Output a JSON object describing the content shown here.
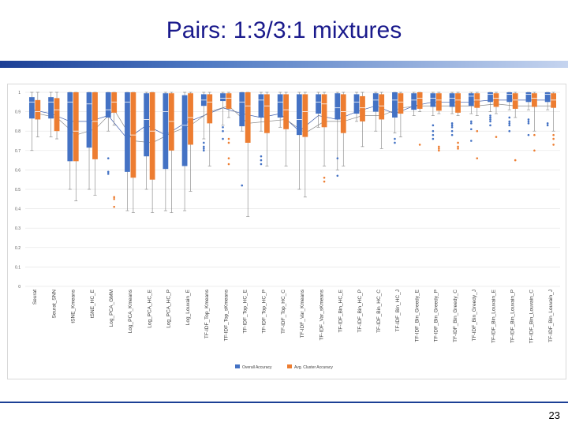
{
  "slide": {
    "title": "Pairs: 1:3/3:1 mixtures",
    "page_number": "23"
  },
  "colors": {
    "overall": "#4472c4",
    "cluster": "#ed7d31",
    "title": "#1a1a8c"
  },
  "chart_data": {
    "type": "box",
    "ylim": [
      0,
      1
    ],
    "yticks": [
      "0",
      "0.1",
      "0.2",
      "0.3",
      "0.4",
      "0.5",
      "0.6",
      "0.7",
      "0.8",
      "0.9",
      "1"
    ],
    "categories": [
      "Seurat",
      "Seurat_SNN",
      "tSNE_Kmeans",
      "tSNE_HC_E",
      "Log_PCA_GMM",
      "Log_PCA_Kmeans",
      "Log_PCA_HC_E",
      "Log_PCA_HC_P",
      "Log_Louvain_E",
      "TF-IDF_Top_Kmeans",
      "TF-IDF_Top_sKmeans",
      "TF-IDF_Top_HC_E",
      "TF-IDF_Top_HC_P",
      "TF-IDF_Top_HC_C",
      "TF-IDF_Var_Kmeans",
      "TF-IDF_Var_sKmeans",
      "TF-IDF_Bin_HC_E",
      "TF-IDF_Bin_HC_P",
      "TF-IDF_Bin_HC_C",
      "TF-IDF_Bin_HC_J",
      "TF-IDF_Bin_Greedy_E",
      "TF-IDF_Bin_Greedy_P",
      "TF-IDF_Bin_Greedy_C",
      "TF-IDF_Bin_Greedy_J",
      "TF-IDF_Bin_Louvain_E",
      "TF-IDF_Bin_Louvain_P",
      "TF-IDF_Bin_Louvain_C",
      "TF-IDF_Bin_Louvain_J"
    ],
    "legend": {
      "position": "bottom",
      "labels": [
        "Overall Accuracy",
        "Avg. Cluster Accuracy"
      ]
    },
    "series": [
      {
        "name": "Overall Accuracy",
        "color": "#4472c4",
        "boxes": [
          {
            "min": 0.7,
            "q1": 0.865,
            "median": 0.95,
            "q3": 0.975,
            "max": 1.0,
            "mean": 0.91,
            "outliers": []
          },
          {
            "min": 0.77,
            "q1": 0.865,
            "median": 0.95,
            "q3": 0.975,
            "max": 1.0,
            "mean": 0.89,
            "outliers": []
          },
          {
            "min": 0.5,
            "q1": 0.645,
            "median": 0.95,
            "q3": 1.0,
            "max": 1.0,
            "mean": 0.85,
            "outliers": []
          },
          {
            "min": 0.5,
            "q1": 0.715,
            "median": 0.94,
            "q3": 1.0,
            "max": 1.0,
            "mean": 0.85,
            "outliers": []
          },
          {
            "min": 0.8,
            "q1": 0.87,
            "median": 0.91,
            "q3": 1.0,
            "max": 1.0,
            "mean": 0.88,
            "outliers": [
              0.58,
              0.59,
              0.66
            ]
          },
          {
            "min": 0.39,
            "q1": 0.59,
            "median": 0.95,
            "q3": 1.0,
            "max": 1.0,
            "mean": 0.76,
            "outliers": []
          },
          {
            "min": 0.5,
            "q1": 0.67,
            "median": 0.86,
            "q3": 0.995,
            "max": 1.0,
            "mean": 0.83,
            "outliers": []
          },
          {
            "min": 0.39,
            "q1": 0.605,
            "median": 0.9,
            "q3": 0.995,
            "max": 1.0,
            "mean": 0.78,
            "outliers": []
          },
          {
            "min": 0.39,
            "q1": 0.62,
            "median": 0.83,
            "q3": 0.985,
            "max": 1.0,
            "mean": 0.84,
            "outliers": []
          },
          {
            "min": 0.76,
            "q1": 0.93,
            "median": 0.96,
            "q3": 0.99,
            "max": 1.0,
            "mean": 0.88,
            "outliers": [
              0.7,
              0.71,
              0.72,
              0.74
            ]
          },
          {
            "min": 0.83,
            "q1": 0.955,
            "median": 0.97,
            "q3": 0.995,
            "max": 1.0,
            "mean": 0.92,
            "outliers": [
              0.76,
              0.8,
              0.82
            ]
          },
          {
            "min": 0.8,
            "q1": 0.825,
            "median": 0.95,
            "q3": 1.0,
            "max": 1.0,
            "mean": 0.89,
            "outliers": [
              0.52
            ]
          },
          {
            "min": 0.8,
            "q1": 0.87,
            "median": 0.96,
            "q3": 0.99,
            "max": 1.0,
            "mean": 0.87,
            "outliers": [
              0.63,
              0.65,
              0.67
            ]
          },
          {
            "min": 0.82,
            "q1": 0.87,
            "median": 0.95,
            "q3": 0.99,
            "max": 1.0,
            "mean": 0.89,
            "outliers": []
          },
          {
            "min": 0.5,
            "q1": 0.78,
            "median": 0.86,
            "q3": 0.99,
            "max": 1.0,
            "mean": 0.8,
            "outliers": []
          },
          {
            "min": 0.82,
            "q1": 0.89,
            "median": 0.95,
            "q3": 0.99,
            "max": 1.0,
            "mean": 0.88,
            "outliers": []
          },
          {
            "min": 0.6,
            "q1": 0.86,
            "median": 0.92,
            "q3": 0.995,
            "max": 1.0,
            "mean": 0.86,
            "outliers": [
              0.57,
              0.66
            ]
          },
          {
            "min": 0.85,
            "q1": 0.89,
            "median": 0.95,
            "q3": 0.99,
            "max": 1.0,
            "mean": 0.9,
            "outliers": []
          },
          {
            "min": 0.8,
            "q1": 0.9,
            "median": 0.96,
            "q3": 0.995,
            "max": 1.0,
            "mean": 0.93,
            "outliers": []
          },
          {
            "min": 0.79,
            "q1": 0.87,
            "median": 0.96,
            "q3": 1.0,
            "max": 1.0,
            "mean": 0.89,
            "outliers": [
              0.74,
              0.76
            ]
          },
          {
            "min": 0.88,
            "q1": 0.91,
            "median": 0.96,
            "q3": 0.995,
            "max": 1.0,
            "mean": 0.93,
            "outliers": []
          },
          {
            "min": 0.88,
            "q1": 0.925,
            "median": 0.97,
            "q3": 0.995,
            "max": 1.0,
            "mean": 0.95,
            "outliers": [
              0.76,
              0.78,
              0.8,
              0.83
            ]
          },
          {
            "min": 0.89,
            "q1": 0.925,
            "median": 0.97,
            "q3": 0.995,
            "max": 1.0,
            "mean": 0.95,
            "outliers": [
              0.78,
              0.8,
              0.82,
              0.83,
              0.84
            ]
          },
          {
            "min": 0.89,
            "q1": 0.93,
            "median": 0.98,
            "q3": 0.995,
            "max": 1.0,
            "mean": 0.95,
            "outliers": [
              0.75,
              0.81,
              0.84,
              0.85
            ]
          },
          {
            "min": 0.9,
            "q1": 0.95,
            "median": 0.99,
            "q3": 1.0,
            "max": 1.0,
            "mean": 0.96,
            "outliers": [
              0.83,
              0.85,
              0.86,
              0.87,
              0.88
            ]
          },
          {
            "min": 0.91,
            "q1": 0.95,
            "median": 0.99,
            "q3": 1.0,
            "max": 1.0,
            "mean": 0.96,
            "outliers": [
              0.8,
              0.83,
              0.84,
              0.85,
              0.87
            ]
          },
          {
            "min": 0.91,
            "q1": 0.95,
            "median": 0.99,
            "q3": 1.0,
            "max": 1.0,
            "mean": 0.96,
            "outliers": [
              0.78,
              0.84,
              0.85,
              0.86
            ]
          },
          {
            "min": 0.91,
            "q1": 0.95,
            "median": 0.99,
            "q3": 1.0,
            "max": 1.0,
            "mean": 0.96,
            "outliers": [
              0.83,
              0.84
            ]
          }
        ]
      },
      {
        "name": "Avg. Cluster Accuracy",
        "color": "#ed7d31",
        "boxes": [
          {
            "min": 0.77,
            "q1": 0.86,
            "median": 0.9,
            "q3": 0.96,
            "max": 1.0,
            "mean": 0.89,
            "outliers": []
          },
          {
            "min": 0.76,
            "q1": 0.8,
            "median": 0.91,
            "q3": 0.97,
            "max": 1.0,
            "mean": 0.87,
            "outliers": []
          },
          {
            "min": 0.44,
            "q1": 0.645,
            "median": 0.8,
            "q3": 1.0,
            "max": 1.0,
            "mean": 0.78,
            "outliers": []
          },
          {
            "min": 0.47,
            "q1": 0.655,
            "median": 0.85,
            "q3": 1.0,
            "max": 1.0,
            "mean": 0.81,
            "outliers": []
          },
          {
            "min": 0.83,
            "q1": 0.895,
            "median": 0.95,
            "q3": 1.0,
            "max": 1.0,
            "mean": 0.91,
            "outliers": [
              0.41,
              0.45,
              0.46
            ]
          },
          {
            "min": 0.38,
            "q1": 0.56,
            "median": 0.78,
            "q3": 1.0,
            "max": 1.0,
            "mean": 0.75,
            "outliers": []
          },
          {
            "min": 0.38,
            "q1": 0.55,
            "median": 0.8,
            "q3": 1.0,
            "max": 1.0,
            "mean": 0.74,
            "outliers": []
          },
          {
            "min": 0.38,
            "q1": 0.7,
            "median": 0.85,
            "q3": 0.995,
            "max": 1.0,
            "mean": 0.79,
            "outliers": []
          },
          {
            "min": 0.49,
            "q1": 0.73,
            "median": 0.87,
            "q3": 0.995,
            "max": 1.0,
            "mean": 0.83,
            "outliers": []
          },
          {
            "min": 0.62,
            "q1": 0.84,
            "median": 0.95,
            "q3": 0.99,
            "max": 1.0,
            "mean": 0.9,
            "outliers": []
          },
          {
            "min": 0.87,
            "q1": 0.915,
            "median": 0.97,
            "q3": 0.995,
            "max": 1.0,
            "mean": 0.93,
            "outliers": [
              0.63,
              0.66,
              0.74,
              0.76
            ]
          },
          {
            "min": 0.36,
            "q1": 0.74,
            "median": 0.93,
            "q3": 1.0,
            "max": 1.0,
            "mean": 0.84,
            "outliers": []
          },
          {
            "min": 0.62,
            "q1": 0.79,
            "median": 0.93,
            "q3": 0.99,
            "max": 1.0,
            "mean": 0.85,
            "outliers": []
          },
          {
            "min": 0.62,
            "q1": 0.81,
            "median": 0.91,
            "q3": 0.99,
            "max": 1.0,
            "mean": 0.86,
            "outliers": []
          },
          {
            "min": 0.46,
            "q1": 0.77,
            "median": 0.9,
            "q3": 0.99,
            "max": 1.0,
            "mean": 0.79,
            "outliers": []
          },
          {
            "min": 0.62,
            "q1": 0.82,
            "median": 0.94,
            "q3": 0.99,
            "max": 1.0,
            "mean": 0.85,
            "outliers": [
              0.54,
              0.56
            ]
          },
          {
            "min": 0.62,
            "q1": 0.79,
            "median": 0.9,
            "q3": 0.99,
            "max": 1.0,
            "mean": 0.85,
            "outliers": []
          },
          {
            "min": 0.72,
            "q1": 0.85,
            "median": 0.92,
            "q3": 0.98,
            "max": 1.0,
            "mean": 0.88,
            "outliers": []
          },
          {
            "min": 0.71,
            "q1": 0.86,
            "median": 0.93,
            "q3": 0.99,
            "max": 1.0,
            "mean": 0.88,
            "outliers": []
          },
          {
            "min": 0.77,
            "q1": 0.89,
            "median": 0.95,
            "q3": 0.995,
            "max": 1.0,
            "mean": 0.92,
            "outliers": []
          },
          {
            "min": 0.9,
            "q1": 0.915,
            "median": 0.97,
            "q3": 1.0,
            "max": 1.0,
            "mean": 0.93,
            "outliers": [
              0.73
            ]
          },
          {
            "min": 0.89,
            "q1": 0.905,
            "median": 0.96,
            "q3": 0.995,
            "max": 1.0,
            "mean": 0.93,
            "outliers": [
              0.7,
              0.71,
              0.72
            ]
          },
          {
            "min": 0.88,
            "q1": 0.895,
            "median": 0.96,
            "q3": 0.995,
            "max": 1.0,
            "mean": 0.93,
            "outliers": [
              0.71,
              0.72,
              0.74
            ]
          },
          {
            "min": 0.88,
            "q1": 0.92,
            "median": 0.96,
            "q3": 0.995,
            "max": 1.0,
            "mean": 0.93,
            "outliers": [
              0.66,
              0.8
            ]
          },
          {
            "min": 0.89,
            "q1": 0.925,
            "median": 0.97,
            "q3": 0.995,
            "max": 1.0,
            "mean": 0.94,
            "outliers": [
              0.77
            ]
          },
          {
            "min": 0.87,
            "q1": 0.915,
            "median": 0.96,
            "q3": 0.995,
            "max": 1.0,
            "mean": 0.93,
            "outliers": [
              0.65
            ]
          },
          {
            "min": 0.8,
            "q1": 0.925,
            "median": 0.97,
            "q3": 0.995,
            "max": 1.0,
            "mean": 0.93,
            "outliers": [
              0.7,
              0.78
            ]
          },
          {
            "min": 0.8,
            "q1": 0.92,
            "median": 0.96,
            "q3": 0.995,
            "max": 1.0,
            "mean": 0.93,
            "outliers": [
              0.73,
              0.76,
              0.78
            ]
          }
        ]
      }
    ]
  }
}
